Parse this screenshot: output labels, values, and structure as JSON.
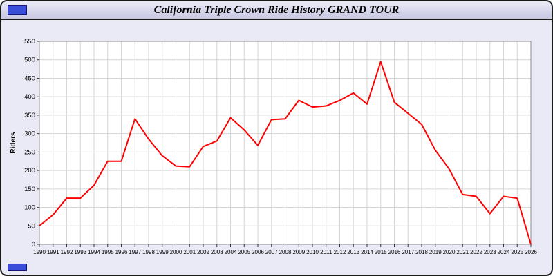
{
  "window": {
    "title": "California Triple Crown Ride History GRAND TOUR"
  },
  "colors": {
    "window_bg": "#EAEAF6",
    "titlebar_gradient_top": "#ECECF8",
    "titlebar_gradient_bottom": "#C7C7E2",
    "accent_blue": "#3B4EDB",
    "plot_bg": "#FFFFFF",
    "grid": "#D6D6D6",
    "plot_border": "#8A8A8A",
    "line": "#FF0000",
    "tick_text": "#000000"
  },
  "chart_data": {
    "type": "line",
    "title": "California Triple Crown Ride History GRAND TOUR",
    "xlabel": "",
    "ylabel": "Riders",
    "ylim": [
      0,
      550
    ],
    "ytick_step": 50,
    "grid": true,
    "legend": "none",
    "x": [
      1990,
      1991,
      1992,
      1993,
      1994,
      1995,
      1996,
      1997,
      1998,
      1999,
      2000,
      2001,
      2002,
      2003,
      2004,
      2005,
      2006,
      2007,
      2008,
      2009,
      2010,
      2011,
      2012,
      2013,
      2014,
      2015,
      2016,
      2017,
      2018,
      2019,
      2020,
      2021,
      2022,
      2023,
      2024,
      2025,
      2026
    ],
    "series": [
      {
        "name": "Riders",
        "color": "#FF0000",
        "values": [
          50,
          80,
          125,
          125,
          160,
          225,
          225,
          340,
          285,
          240,
          212,
          210,
          265,
          280,
          343,
          310,
          268,
          338,
          340,
          390,
          372,
          375,
          390,
          410,
          380,
          495,
          385,
          355,
          325,
          255,
          205,
          135,
          130,
          83,
          130,
          125,
          0
        ]
      }
    ]
  }
}
